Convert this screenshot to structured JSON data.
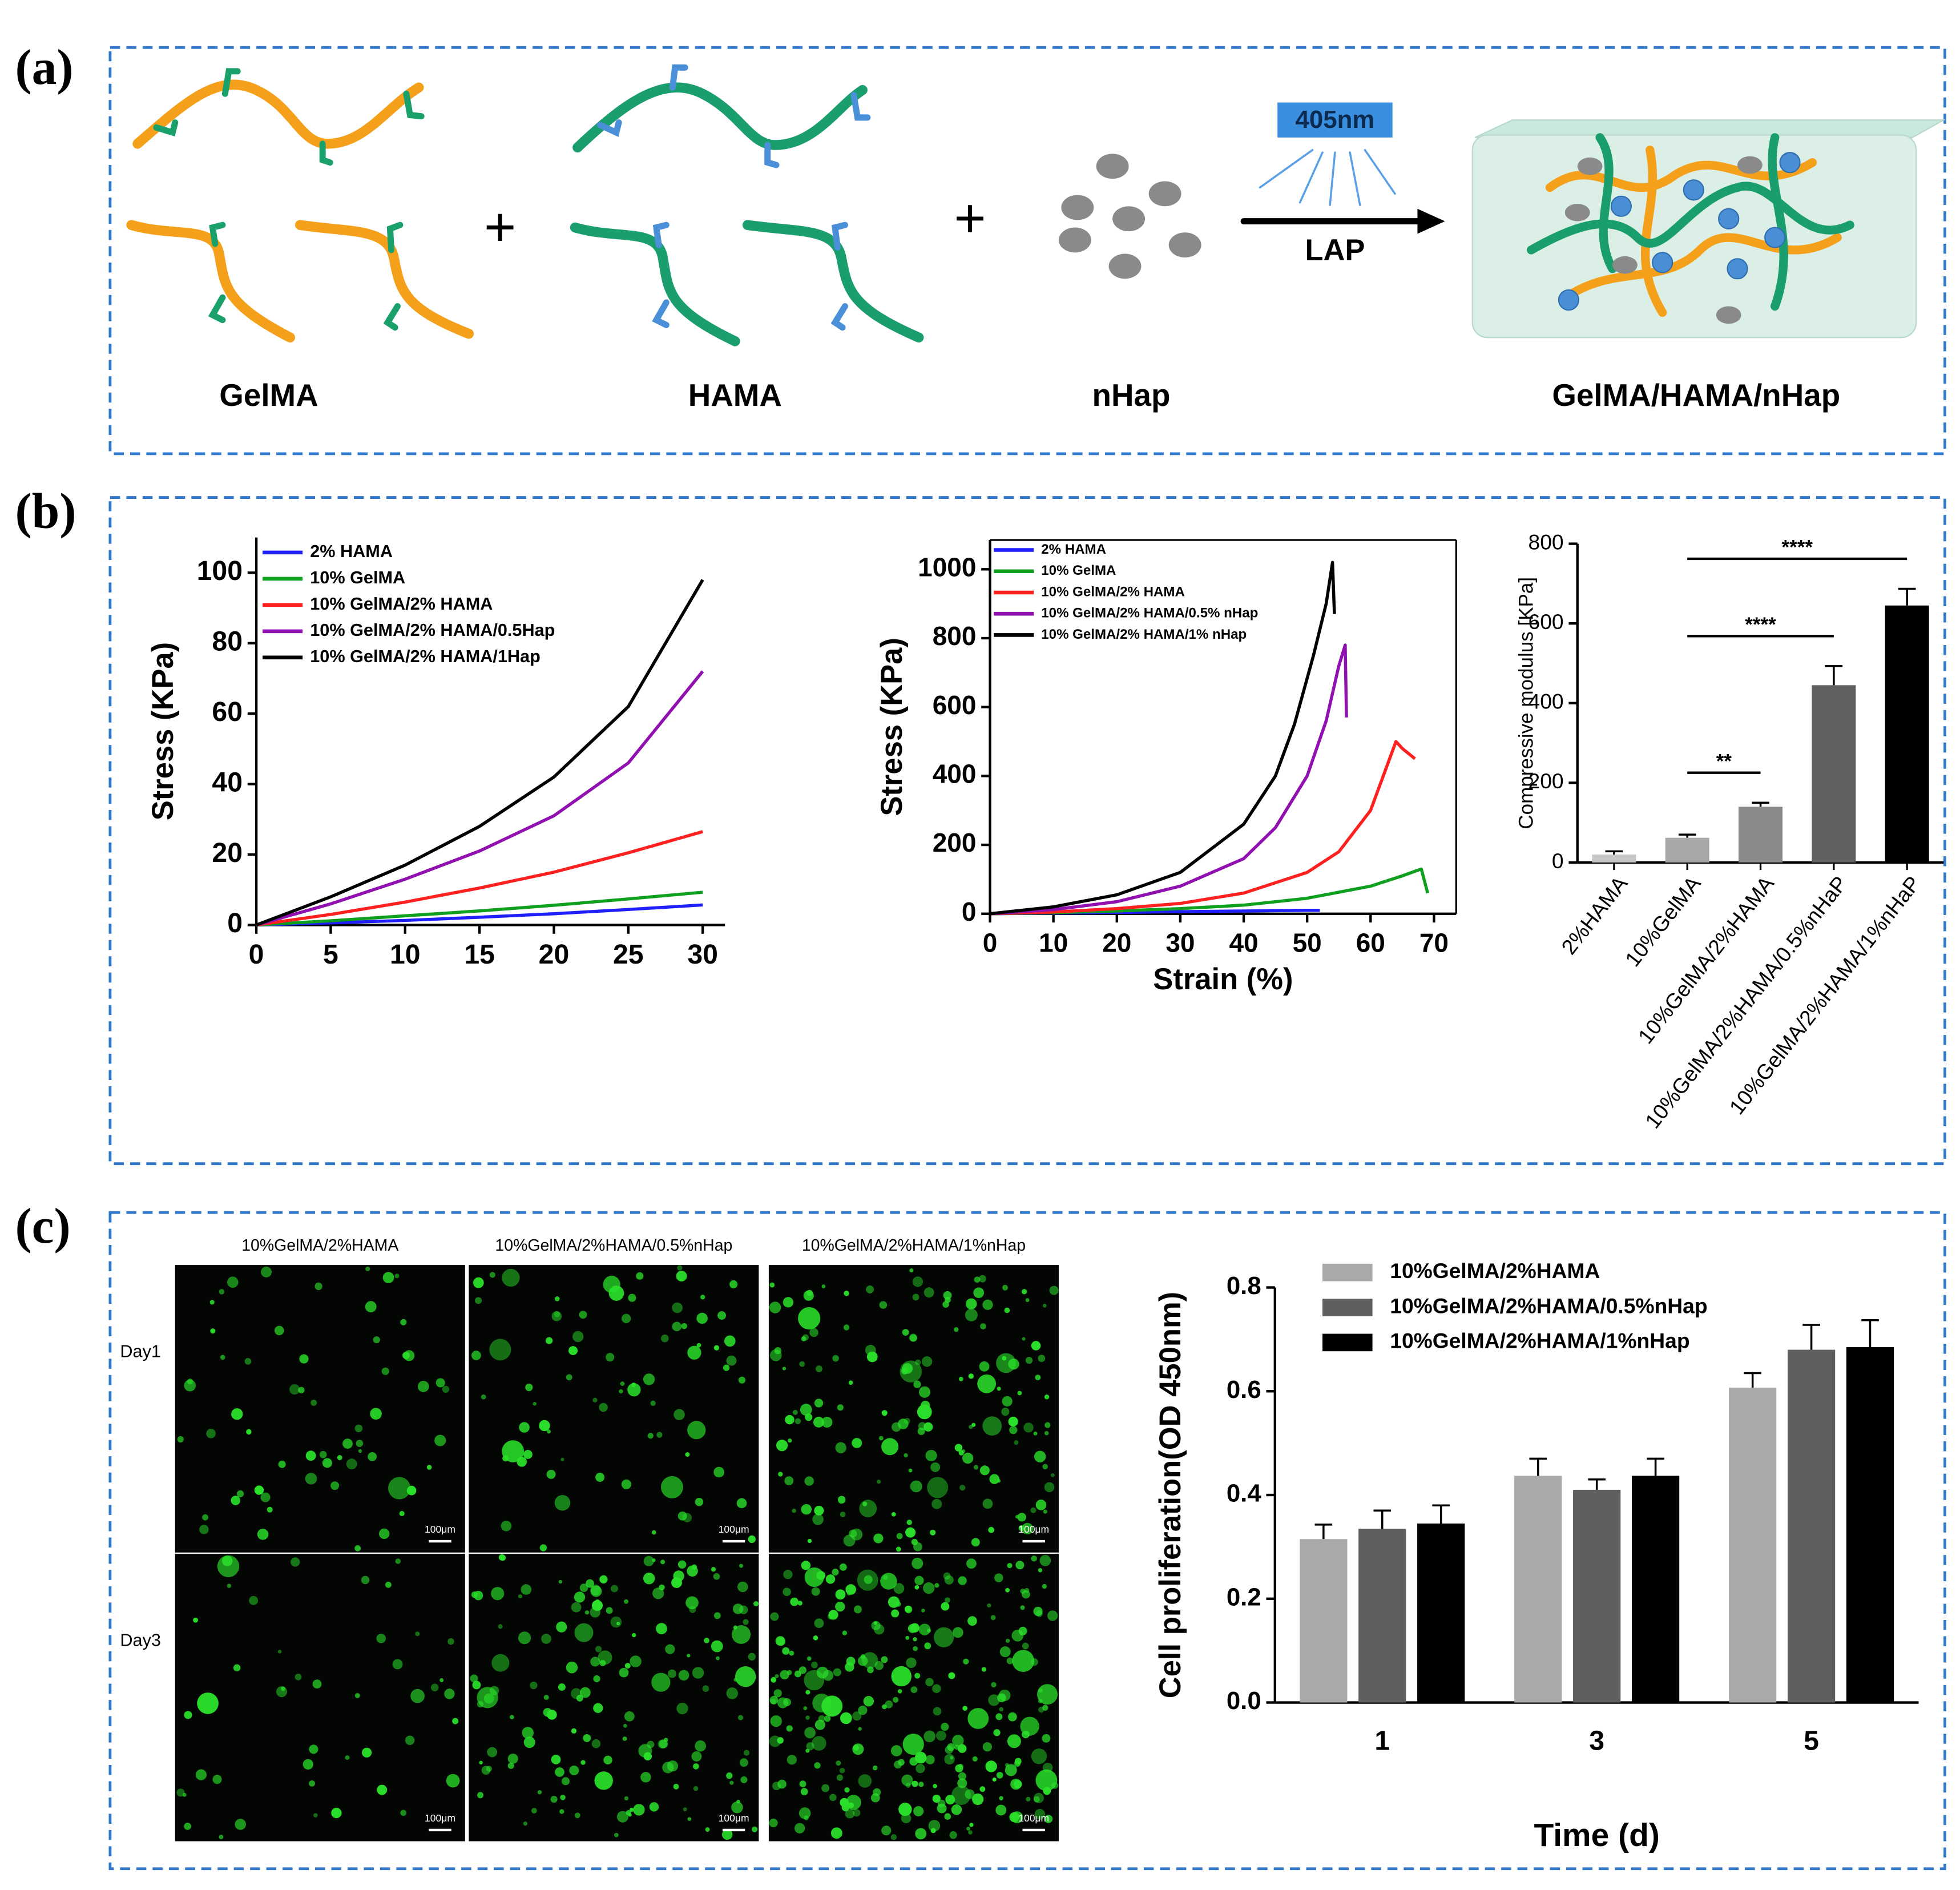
{
  "panel_labels": [
    "(a)",
    "(b)",
    "(c)"
  ],
  "diagram": {
    "plus": "+",
    "light": "405nm",
    "initiator": "LAP",
    "labels": [
      "GelMA",
      "HAMA",
      "nHap",
      "GelMA/HAMA/nHap"
    ]
  },
  "chart_data": [
    {
      "type": "line",
      "ylabel": "Stress (KPa)",
      "x": [
        0,
        5,
        10,
        15,
        20,
        25,
        30
      ],
      "series": [
        {
          "name": "2% HAMA",
          "color": "#1f1fff",
          "values": [
            0,
            0.6,
            1.3,
            2.2,
            3.2,
            4.4,
            5.7
          ]
        },
        {
          "name": "10% GelMA",
          "color": "#10a020",
          "values": [
            0,
            1.2,
            2.6,
            4,
            5.6,
            7.4,
            9.3
          ]
        },
        {
          "name": "10% GelMA/2% HAMA",
          "color": "#ff2020",
          "values": [
            0,
            3,
            6.5,
            10.5,
            15,
            20.5,
            26.5
          ]
        },
        {
          "name": "10% GelMA/2% HAMA/0.5Hap",
          "color": "#9010b0",
          "values": [
            0,
            6,
            13,
            21,
            31,
            46,
            72
          ]
        },
        {
          "name": "10% GelMA/2% HAMA/1Hap",
          "color": "#000000",
          "values": [
            0,
            8,
            17,
            28,
            42,
            62,
            98
          ]
        }
      ],
      "xlim": [
        0,
        31.5
      ],
      "xticks": [
        0,
        5,
        10,
        15,
        20,
        25,
        30
      ],
      "ylim": [
        0,
        110
      ],
      "yticks": [
        0,
        20,
        40,
        60,
        80,
        100
      ],
      "legend": "upper left"
    },
    {
      "type": "line",
      "xlabel": "Strain (%)",
      "ylabel": "Stress (KPa)",
      "box": true,
      "series": [
        {
          "name": "2% HAMA",
          "color": "#1f1fff",
          "x": [
            0,
            10,
            20,
            30,
            40,
            50,
            52
          ],
          "values": [
            0,
            2,
            4,
            6,
            8,
            10,
            10
          ]
        },
        {
          "name": "10% GelMA",
          "color": "#10a020",
          "x": [
            0,
            10,
            20,
            30,
            40,
            50,
            60,
            65,
            68,
            69
          ],
          "values": [
            0,
            3,
            8,
            15,
            25,
            45,
            80,
            110,
            130,
            60
          ]
        },
        {
          "name": "10% GelMA/2% HAMA",
          "color": "#ff2020",
          "x": [
            0,
            10,
            20,
            30,
            40,
            50,
            55,
            60,
            64,
            65,
            67
          ],
          "values": [
            0,
            5,
            15,
            30,
            60,
            120,
            180,
            300,
            500,
            480,
            450
          ]
        },
        {
          "name": "10% GelMA/2% HAMA/0.5% nHap",
          "color": "#9010b0",
          "x": [
            0,
            10,
            20,
            30,
            40,
            45,
            50,
            53,
            55,
            56,
            56.2
          ],
          "values": [
            0,
            12,
            35,
            80,
            160,
            250,
            400,
            560,
            720,
            780,
            570
          ]
        },
        {
          "name": "10% GelMA/2% HAMA/1% nHap",
          "color": "#000000",
          "x": [
            0,
            10,
            20,
            30,
            40,
            45,
            48,
            51,
            53,
            54,
            54.3
          ],
          "values": [
            0,
            20,
            55,
            120,
            260,
            400,
            550,
            750,
            900,
            1020,
            870
          ]
        }
      ],
      "xlim": [
        0,
        73.5
      ],
      "xticks": [
        0,
        10,
        20,
        30,
        40,
        50,
        60,
        70
      ],
      "ylim": [
        0,
        1085
      ],
      "yticks": [
        0,
        200,
        400,
        600,
        800,
        1000
      ],
      "legend": "upper left"
    },
    {
      "type": "bar",
      "ylabel": "Compressive modulus [KPa]",
      "categories": [
        "2%HAMA",
        "10%GelMA",
        "10%GelMA/2%HAMA",
        "10%GelMA/2%HAMA/0.5%nHaP",
        "10%GelMA/2%HAMA/1%nHaP"
      ],
      "values": [
        20,
        62,
        140,
        445,
        645
      ],
      "errors": [
        8,
        8,
        10,
        48,
        42
      ],
      "colors": [
        "#c8c8c8",
        "#a8a8a8",
        "#8a8a8a",
        "#606060",
        "#000000"
      ],
      "ylim": [
        0,
        800
      ],
      "yticks": [
        0,
        200,
        400,
        600,
        800
      ],
      "annotations": [
        {
          "label": "**",
          "between": [
            "10%GelMA",
            "10%GelMA/2%HAMA"
          ]
        },
        {
          "label": "****",
          "between": [
            "10%GelMA",
            "10%GelMA/2%HAMA/0.5%nHaP"
          ]
        },
        {
          "label": "****",
          "between": [
            "10%GelMA",
            "10%GelMA/2%HAMA/1%nHaP"
          ]
        }
      ]
    },
    {
      "type": "bar",
      "xlabel": "Time (d)",
      "ylabel": "Cell proliferation(OD 450nm)",
      "categories": [
        "1",
        "3",
        "5"
      ],
      "series": [
        {
          "name": "10%GelMA/2%HAMA",
          "color": "#a9a9a9",
          "values": [
            0.315,
            0.437,
            0.607
          ],
          "errors": [
            0.028,
            0.033,
            0.028
          ]
        },
        {
          "name": "10%GelMA/2%HAMA/0.5%nHap",
          "color": "#5f5f5f",
          "values": [
            0.335,
            0.41,
            0.68
          ],
          "errors": [
            0.035,
            0.02,
            0.048
          ]
        },
        {
          "name": "10%GelMA/2%HAMA/1%nHap",
          "color": "#000000",
          "values": [
            0.345,
            0.437,
            0.685
          ],
          "errors": [
            0.035,
            0.033,
            0.052
          ]
        }
      ],
      "ylim": [
        0,
        0.8
      ],
      "yticks": [
        {
          "value": 0,
          "label": "0.0"
        },
        0.2,
        0.4,
        0.6,
        0.8
      ],
      "legend": "upper left"
    }
  ],
  "micrographs": {
    "columns": [
      "10%GelMA/2%HAMA",
      "10%GelMA/2%HAMA/0.5%nHap",
      "10%GelMA/2%HAMA/1%nHap"
    ],
    "rows": [
      "Day1",
      "Day3"
    ],
    "scale_bar": "100μm"
  }
}
